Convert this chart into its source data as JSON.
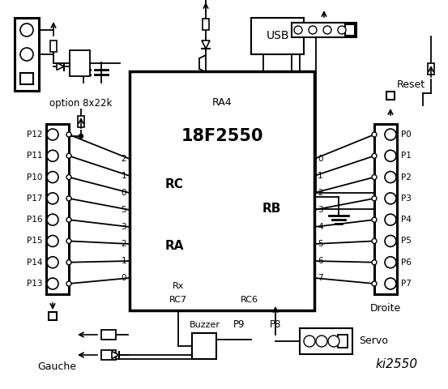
{
  "background": "white",
  "chip_label": "18F2550",
  "chip_sublabel": "RA4",
  "chip_RC_label": "RC",
  "chip_RA_label": "RA",
  "chip_RB_label": "RB",
  "chip_RC7": "RC7",
  "chip_RC6": "RC6",
  "chip_Rx": "Rx",
  "left_pins": [
    "P12",
    "P11",
    "P10",
    "P17",
    "P16",
    "P15",
    "P14",
    "P13"
  ],
  "right_pins": [
    "P0",
    "P1",
    "P2",
    "P3",
    "P4",
    "P5",
    "P6",
    "P7"
  ],
  "rc_pin_labels": [
    "2",
    "1",
    "0",
    "5",
    "3",
    "2",
    "1",
    "0"
  ],
  "rb_pin_labels": [
    "0",
    "1",
    "2",
    "3",
    "4",
    "5",
    "6",
    "7"
  ],
  "option_text": "option 8x22k",
  "gauche_text": "Gauche",
  "droite_text": "Droite",
  "buzzer_text": "Buzzer",
  "servo_text": "Servo",
  "p9_text": "P9",
  "p8_text": "P8",
  "usb_text": "USB",
  "reset_text": "Reset",
  "ki2550_text": "ki2550"
}
